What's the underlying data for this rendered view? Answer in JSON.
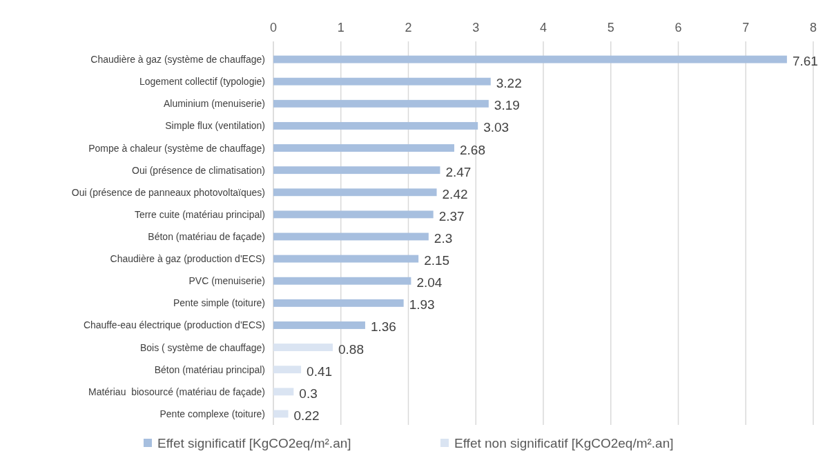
{
  "chart_data": {
    "type": "bar",
    "orientation": "horizontal",
    "categories": [
      "Chaudière à gaz (système de chauffage)",
      "Logement collectif (typologie)",
      "Aluminium (menuiserie)",
      "Simple flux (ventilation)",
      "Pompe à chaleur (système de chauffage)",
      "Oui (présence de climatisation)",
      "Oui (présence de panneaux photovoltaïques)",
      "Terre cuite (matériau principal)",
      "Béton (matériau de façade)",
      "Chaudière à gaz (production d'ECS)",
      "PVC (menuiserie)",
      "Pente simple (toiture)",
      "Chauffe-eau électrique (production d'ECS)",
      "Bois ( système de chauffage)",
      "Béton (matériau principal)",
      "Matériau  biosourcé (matériau de façade)",
      "Pente complexe (toiture)"
    ],
    "series": [
      {
        "name": "Effet significatif [KgCO2eq/m².an]",
        "color": "#a7bfdf",
        "values": [
          7.61,
          3.22,
          3.19,
          3.03,
          2.68,
          2.47,
          2.42,
          2.37,
          2.3,
          2.15,
          2.04,
          1.93,
          1.36,
          null,
          null,
          null,
          null
        ]
      },
      {
        "name": "Effet non significatif [KgCO2eq/m².an]",
        "color": "#dae4f2",
        "values": [
          null,
          null,
          null,
          null,
          null,
          null,
          null,
          null,
          null,
          null,
          null,
          null,
          null,
          0.88,
          0.41,
          0.3,
          0.22
        ]
      }
    ],
    "xlim": [
      0,
      8
    ],
    "xticks": [
      0,
      1,
      2,
      3,
      4,
      5,
      6,
      7,
      8
    ],
    "grid": "x",
    "legend": "bottom",
    "data_labels": true
  }
}
